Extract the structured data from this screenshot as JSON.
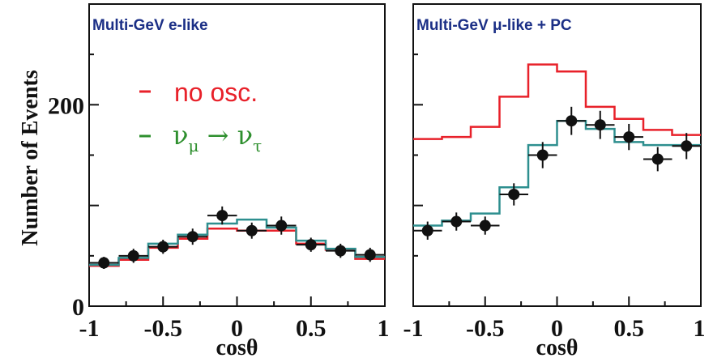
{
  "chart_data": [
    {
      "type": "line",
      "title": "Multi-GeV e-like",
      "xlabel": "cosθ",
      "ylabel": "Number of Events",
      "xlim": [
        -1,
        1
      ],
      "ylim": [
        0,
        300
      ],
      "x_ticks": [
        "-1",
        "-0.5",
        "0",
        "0.5",
        "1"
      ],
      "y_ticks": [
        "0",
        "200"
      ],
      "legend": {
        "position": "top-left",
        "no_osc": "no osc.",
        "osc_main": "ν",
        "osc_sub1": "μ",
        "osc_arrow": " → ν",
        "osc_sub2": "τ"
      },
      "bin_edges": [
        -1,
        -0.8,
        -0.6,
        -0.4,
        -0.2,
        0,
        0.2,
        0.4,
        0.6,
        0.8,
        1
      ],
      "series": [
        {
          "name": "no osc.",
          "color": "#e8212a",
          "values": [
            40,
            46,
            58,
            67,
            77,
            75,
            75,
            62,
            56,
            47
          ]
        },
        {
          "name": "νμ → ντ",
          "color": "#2e8f8f",
          "values": [
            41,
            48,
            62,
            71,
            82,
            86,
            78,
            65,
            57,
            49
          ]
        },
        {
          "name": "data",
          "color": "#111111",
          "points": [
            {
              "x": -0.9,
              "y": 43,
              "err": 6
            },
            {
              "x": -0.7,
              "y": 50,
              "err": 7
            },
            {
              "x": -0.5,
              "y": 59,
              "err": 7
            },
            {
              "x": -0.3,
              "y": 69,
              "err": 8
            },
            {
              "x": -0.1,
              "y": 90,
              "err": 9
            },
            {
              "x": 0.1,
              "y": 75,
              "err": 8
            },
            {
              "x": 0.3,
              "y": 80,
              "err": 9
            },
            {
              "x": 0.5,
              "y": 61,
              "err": 7
            },
            {
              "x": 0.7,
              "y": 55,
              "err": 7
            },
            {
              "x": 0.9,
              "y": 51,
              "err": 7
            }
          ]
        }
      ]
    },
    {
      "type": "line",
      "title": "Multi-GeV μ-like + PC",
      "xlabel": "cosθ",
      "xlim": [
        -1,
        1
      ],
      "ylim": [
        0,
        300
      ],
      "x_ticks": [
        "-1",
        "-0.5",
        "0",
        "0.5",
        "1"
      ],
      "bin_edges": [
        -1,
        -0.8,
        -0.6,
        -0.4,
        -0.2,
        0,
        0.2,
        0.4,
        0.6,
        0.8,
        1
      ],
      "series": [
        {
          "name": "no osc.",
          "color": "#e8212a",
          "values": [
            166,
            168,
            178,
            208,
            240,
            233,
            198,
            186,
            175,
            170
          ]
        },
        {
          "name": "νμ → ντ",
          "color": "#2e8f8f",
          "values": [
            80,
            85,
            92,
            118,
            160,
            184,
            176,
            163,
            160,
            160
          ]
        },
        {
          "name": "data",
          "color": "#111111",
          "points": [
            {
              "x": -0.9,
              "y": 75,
              "err": 9
            },
            {
              "x": -0.7,
              "y": 84,
              "err": 9
            },
            {
              "x": -0.5,
              "y": 80,
              "err": 9
            },
            {
              "x": -0.3,
              "y": 111,
              "err": 11
            },
            {
              "x": -0.1,
              "y": 150,
              "err": 13
            },
            {
              "x": 0.1,
              "y": 184,
              "err": 14
            },
            {
              "x": 0.3,
              "y": 180,
              "err": 14
            },
            {
              "x": 0.5,
              "y": 168,
              "err": 13
            },
            {
              "x": 0.7,
              "y": 146,
              "err": 12
            },
            {
              "x": 0.9,
              "y": 159,
              "err": 13
            }
          ]
        }
      ]
    }
  ]
}
